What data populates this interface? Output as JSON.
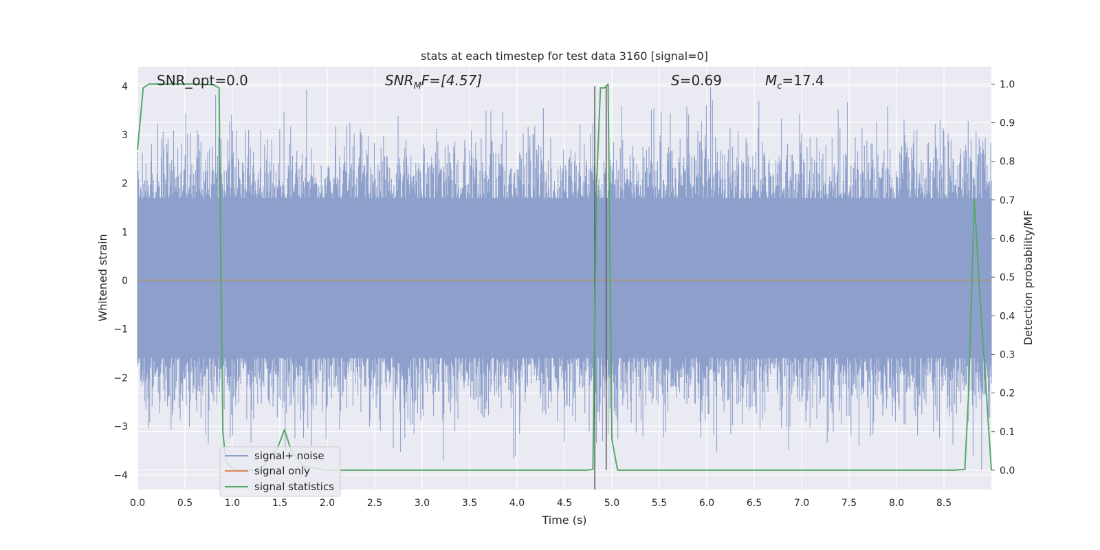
{
  "chart_data": {
    "type": "line",
    "title": "stats at each timestep for test data 3160 [signal=0]",
    "xlabel": "Time (s)",
    "ylabel": "Whitened strain",
    "y2label": "Detection probability/MF",
    "xlim": [
      0.0,
      9.0
    ],
    "ylim": [
      -4.3,
      4.4
    ],
    "y2lim": [
      -0.05,
      1.045
    ],
    "grid": true,
    "legend_position": "lower-left",
    "x_ticks": [
      "0.0",
      "0.5",
      "1.0",
      "1.5",
      "2.0",
      "2.5",
      "3.0",
      "3.5",
      "4.0",
      "4.5",
      "5.0",
      "5.5",
      "6.0",
      "6.5",
      "7.0",
      "7.5",
      "8.0",
      "8.5"
    ],
    "y_ticks": [
      "4",
      "3",
      "2",
      "1",
      "0",
      "−1",
      "−2",
      "−3",
      "−4"
    ],
    "y2_ticks": [
      "1.0",
      "0.9",
      "0.8",
      "0.7",
      "0.6",
      "0.5",
      "0.4",
      "0.3",
      "0.2",
      "0.1",
      "0.0"
    ],
    "annotations": {
      "snr_opt": "SNR_opt=0.0",
      "snr_mf_main": "SNR",
      "snr_mf_sub": "M",
      "snr_mf_rest": "F=[4.57]",
      "s_main": "S",
      "s_rest": "=0.69",
      "mc_main": "M",
      "mc_sub": "c",
      "mc_rest": "=17.4"
    },
    "series": [
      {
        "name": "signal+ noise",
        "color": "#8da0cb",
        "description": "whitened strain noise, roughly within ±2.5 with occasional spikes to about ±4 across 0–9 s",
        "envelope_typical": [
          -1.6,
          1.7
        ],
        "envelope_extreme": [
          -3.9,
          4.0
        ]
      },
      {
        "name": "signal only",
        "color": "#dd8452",
        "x": [
          0.0,
          9.0
        ],
        "y": [
          0.0,
          0.0
        ]
      },
      {
        "name": "signal statistics",
        "color": "#55a868",
        "axis": "right",
        "x": [
          0.0,
          0.06,
          0.12,
          0.2,
          0.4,
          0.6,
          0.8,
          0.86,
          0.88,
          0.9,
          0.93,
          1.0,
          1.06,
          1.3,
          1.48,
          1.55,
          1.62,
          1.75,
          2.0,
          3.0,
          4.0,
          4.5,
          4.73,
          4.8,
          4.84,
          4.88,
          4.92,
          4.96,
          5.0,
          5.06,
          5.2,
          6.0,
          7.0,
          8.0,
          8.6,
          8.72,
          8.76,
          8.82,
          8.88,
          8.96,
          9.0
        ],
        "y": [
          0.83,
          0.99,
          1.0,
          1.0,
          1.0,
          1.0,
          0.998,
          0.99,
          0.5,
          0.1,
          0.025,
          0.005,
          0.0,
          0.0,
          0.06,
          0.105,
          0.05,
          0.01,
          0.0,
          0.0,
          0.0,
          0.0,
          0.0,
          0.002,
          0.75,
          0.99,
          0.99,
          1.0,
          0.08,
          0.0,
          0.0,
          0.0,
          0.0,
          0.0,
          0.0,
          0.002,
          0.2,
          0.7,
          0.45,
          0.15,
          0.0
        ]
      }
    ],
    "vertical_lines": [
      {
        "x": 4.82,
        "y_from": -4.3,
        "y_to": 4.0,
        "color": "#555555"
      },
      {
        "x": 4.94,
        "y_from": -3.9,
        "y_to": 4.0,
        "color": "#555555"
      }
    ]
  }
}
